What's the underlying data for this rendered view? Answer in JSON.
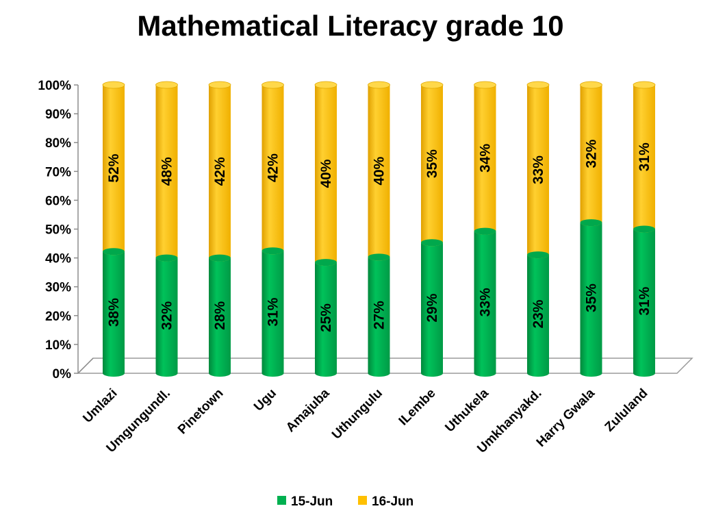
{
  "chart_data": {
    "type": "bar",
    "stacked": true,
    "percent_stacked": true,
    "title": "Mathematical Literacy grade 10",
    "xlabel": "",
    "ylabel": "",
    "ylim": [
      0,
      100
    ],
    "yticks": [
      "0%",
      "10%",
      "20%",
      "30%",
      "40%",
      "50%",
      "60%",
      "70%",
      "80%",
      "90%",
      "100%"
    ],
    "categories": [
      "Umlazi",
      "Umgungundl.",
      "Pinetown",
      "Ugu",
      "Amajuba",
      "Uthungulu",
      "ILembe",
      "Uthukela",
      "Umkhanyakd.",
      "Harry Gwala",
      "Zululand"
    ],
    "series": [
      {
        "name": "15-Jun",
        "color": "#00B050",
        "values": [
          38,
          32,
          28,
          31,
          25,
          27,
          29,
          33,
          23,
          35,
          31
        ],
        "labels": [
          "38%",
          "32%",
          "28%",
          "31%",
          "25%",
          "27%",
          "29%",
          "33%",
          "23%",
          "35%",
          "31%"
        ]
      },
      {
        "name": "16-Jun",
        "color": "#FFC000",
        "values": [
          52,
          48,
          42,
          42,
          40,
          40,
          35,
          34,
          33,
          32,
          31
        ],
        "labels": [
          "52%",
          "48%",
          "42%",
          "42%",
          "40%",
          "40%",
          "35%",
          "34%",
          "33%",
          "32%",
          "31%"
        ]
      }
    ],
    "grid": false,
    "legend_position": "bottom"
  }
}
